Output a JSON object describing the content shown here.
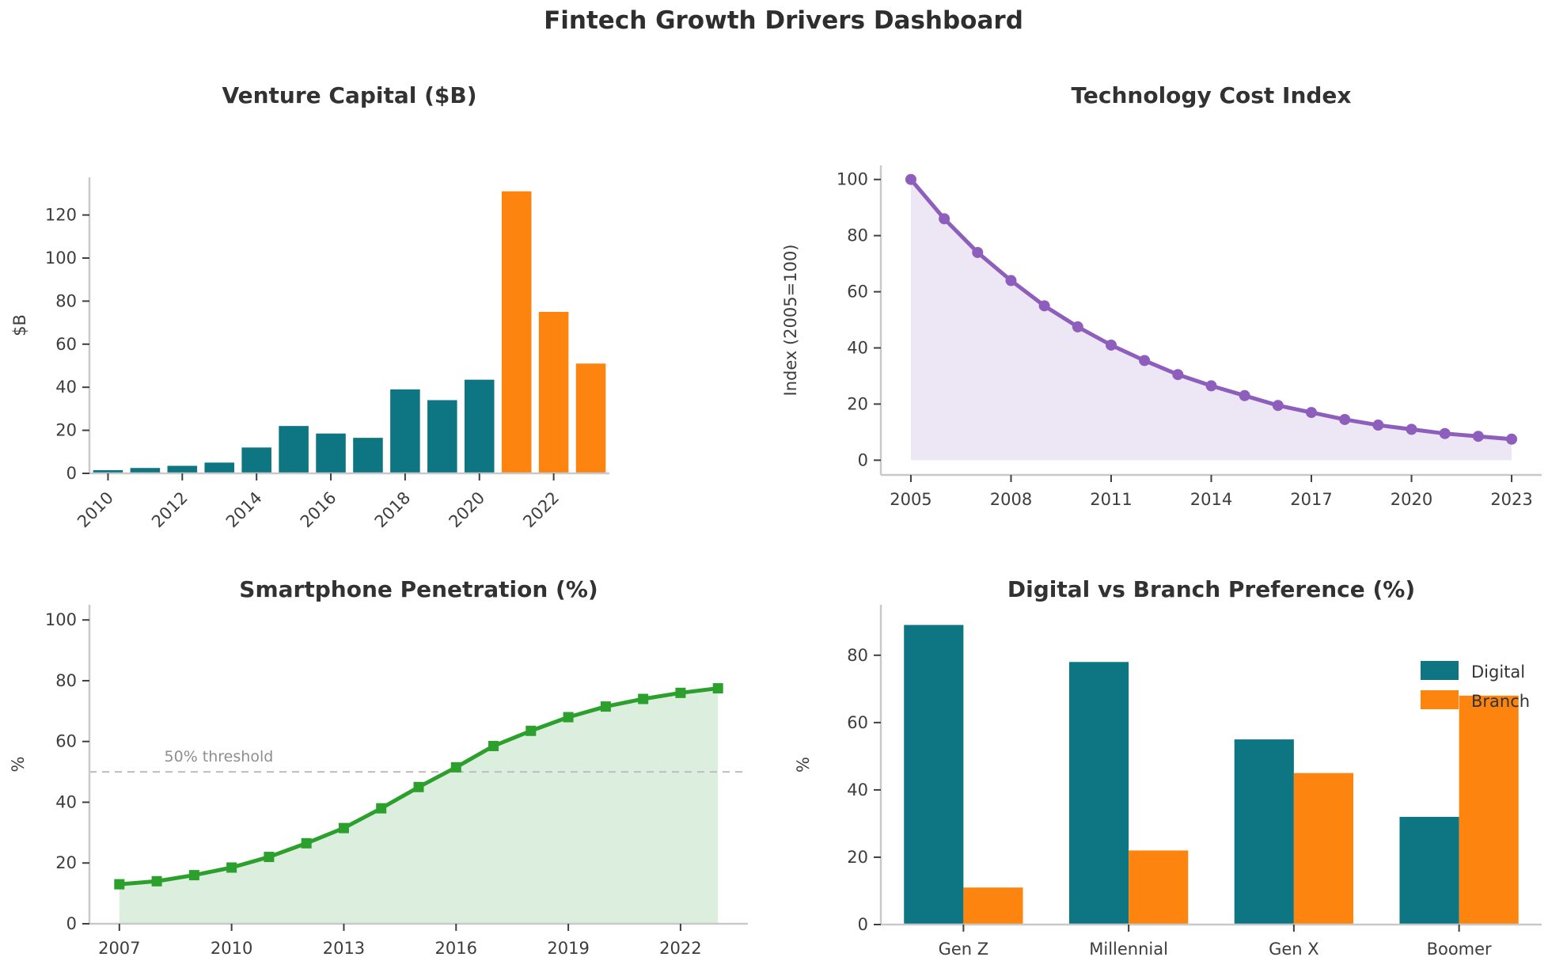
{
  "dashboard": {
    "title": "Fintech Growth Drivers Dashboard"
  },
  "colors": {
    "teal": "#0E7583",
    "orange": "#FD850F",
    "purple": "#8D5EBC",
    "purple_fill": "#ECE6F5",
    "green": "#2CA02C",
    "green_fill": "#DCEEDE",
    "spine": "#C9C9C9",
    "tick": "#3F3F3F",
    "tick_text": "#3D3D3D",
    "title_text": "#323232",
    "threshold_line": "#BDBDBD",
    "threshold_text": "#8E8E8E"
  },
  "chart_data": [
    {
      "id": "venture_capital",
      "type": "bar",
      "title": "Venture Capital ($B)",
      "ylabel": "$B",
      "categories": [
        2010,
        2011,
        2012,
        2013,
        2014,
        2015,
        2016,
        2017,
        2018,
        2019,
        2020,
        2021,
        2022,
        2023
      ],
      "values": [
        1.5,
        2.5,
        3.5,
        5,
        12,
        22,
        18.5,
        16.5,
        39,
        34,
        43.5,
        131,
        75,
        51
      ],
      "bar_colors": [
        "teal",
        "teal",
        "teal",
        "teal",
        "teal",
        "teal",
        "teal",
        "teal",
        "teal",
        "teal",
        "teal",
        "orange",
        "orange",
        "orange"
      ],
      "xticks": [
        2010,
        2012,
        2014,
        2016,
        2018,
        2020,
        2022
      ],
      "yticks": [
        0,
        20,
        40,
        60,
        80,
        100,
        120
      ],
      "ylim": [
        0,
        137.5
      ],
      "xtick_rotation": 45,
      "grid": false
    },
    {
      "id": "tech_cost_index",
      "type": "line",
      "title": "Technology Cost Index",
      "ylabel": "Index (2005=100)",
      "x": [
        2005,
        2006,
        2007,
        2008,
        2009,
        2010,
        2011,
        2012,
        2013,
        2014,
        2015,
        2016,
        2017,
        2018,
        2019,
        2020,
        2021,
        2022,
        2023
      ],
      "values": [
        100,
        86,
        74,
        64,
        55,
        47.5,
        41,
        35.5,
        30.5,
        26.5,
        23,
        19.5,
        17,
        14.5,
        12.5,
        11,
        9.5,
        8.5,
        7.5
      ],
      "xticks": [
        2005,
        2008,
        2011,
        2014,
        2017,
        2020,
        2023
      ],
      "yticks": [
        0,
        20,
        40,
        60,
        80,
        100
      ],
      "ylim": [
        -5.25,
        105
      ],
      "marker": "circle",
      "area_fill": true,
      "line_color": "#8D5EBC",
      "fill_color": "#ECE6F5",
      "grid": false
    },
    {
      "id": "smartphone_penetration",
      "type": "line",
      "title": "Smartphone Penetration (%)",
      "ylabel": "%",
      "x": [
        2007,
        2008,
        2009,
        2010,
        2011,
        2012,
        2013,
        2014,
        2015,
        2016,
        2017,
        2018,
        2019,
        2020,
        2021,
        2022,
        2023
      ],
      "values": [
        13,
        14,
        16,
        18.5,
        22,
        26.5,
        31.5,
        38,
        45,
        51.5,
        58.5,
        63.5,
        68,
        71.5,
        74,
        76,
        77.5
      ],
      "xticks": [
        2007,
        2010,
        2013,
        2016,
        2019,
        2022
      ],
      "yticks": [
        0,
        20,
        40,
        60,
        80,
        100
      ],
      "ylim": [
        0,
        105
      ],
      "marker": "square",
      "area_fill": true,
      "line_color": "#2CA02C",
      "fill_color": "#DCEEDE",
      "threshold": {
        "value": 50,
        "label": "50% threshold"
      },
      "grid": false
    },
    {
      "id": "digital_vs_branch",
      "type": "grouped_bar",
      "title": "Digital vs Branch Preference (%)",
      "ylabel": "%",
      "categories": [
        "Gen Z",
        "Millennial",
        "Gen X",
        "Boomer"
      ],
      "series": [
        {
          "name": "Digital",
          "color": "teal",
          "values": [
            89,
            78,
            55,
            32
          ]
        },
        {
          "name": "Branch",
          "color": "orange",
          "values": [
            11,
            22,
            45,
            68
          ]
        }
      ],
      "yticks": [
        0,
        20,
        40,
        60,
        80
      ],
      "ylim": [
        0,
        95
      ],
      "legend_position": "upper right",
      "grid": false
    }
  ]
}
